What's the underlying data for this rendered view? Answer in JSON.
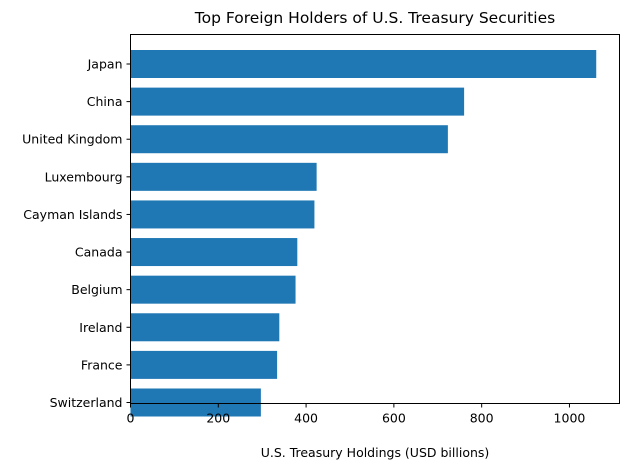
{
  "chart_data": {
    "type": "bar",
    "orientation": "horizontal",
    "title": "Top Foreign Holders of U.S. Treasury Securities",
    "xlabel": "U.S. Treasury Holdings (USD billions)",
    "ylabel": "",
    "categories": [
      "Japan",
      "China",
      "United Kingdom",
      "Luxembourg",
      "Cayman Islands",
      "Canada",
      "Belgium",
      "Ireland",
      "France",
      "Switzerland"
    ],
    "values": [
      1061,
      760,
      723,
      424,
      419,
      380,
      376,
      339,
      334,
      297
    ],
    "xlim": [
      0,
      1114
    ],
    "xticks": [
      0,
      200,
      400,
      600,
      800,
      1000
    ],
    "grid": false,
    "legend": "none",
    "bar_color": "#1f77b4"
  }
}
